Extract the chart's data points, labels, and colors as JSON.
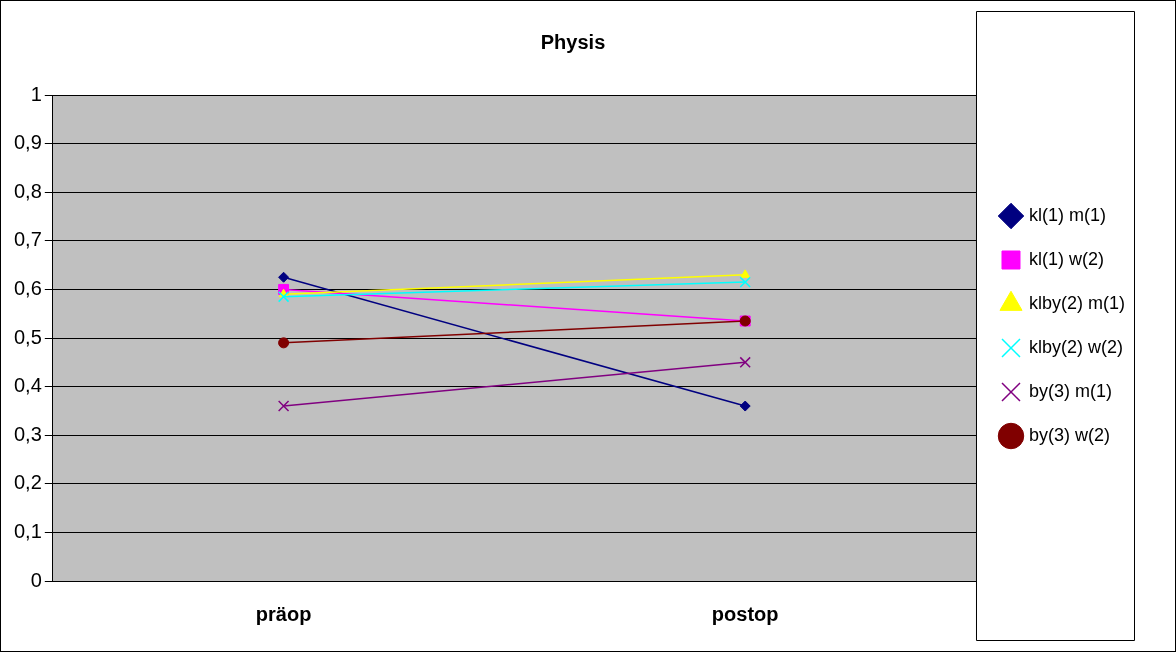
{
  "chart_data": {
    "type": "line",
    "title": "Physis",
    "categories": [
      "präop",
      "postop"
    ],
    "series": [
      {
        "name": "kl(1) m(1)",
        "color": "#000080",
        "values": [
          0.625,
          0.36
        ],
        "marker": "diamond"
      },
      {
        "name": "kl(1) w(2)",
        "color": "#ff00ff",
        "values": [
          0.6,
          0.535
        ],
        "marker": "square"
      },
      {
        "name": "klby(2) m(1)",
        "color": "#ffff00",
        "values": [
          0.59,
          0.63
        ],
        "marker": "triangle"
      },
      {
        "name": "klby(2) w(2)",
        "color": "#00ffff",
        "values": [
          0.585,
          0.615
        ],
        "marker": "cross"
      },
      {
        "name": "by(3) m(1)",
        "color": "#800080",
        "values": [
          0.36,
          0.45
        ],
        "marker": "cross"
      },
      {
        "name": "by(3) w(2)",
        "color": "#800000",
        "values": [
          0.49,
          0.535
        ],
        "marker": "circle"
      }
    ],
    "ylim": [
      0,
      1
    ],
    "yticks": [
      0,
      {
        "value": 0.1,
        "label": "0,1"
      },
      {
        "value": 0.2,
        "label": "0,2"
      },
      {
        "value": 0.3,
        "label": "0,3"
      },
      {
        "value": 0.4,
        "label": "0,4"
      },
      {
        "value": 0.5,
        "label": "0,5"
      },
      {
        "value": 0.6,
        "label": "0,6"
      },
      {
        "value": 0.7,
        "label": "0,7"
      },
      {
        "value": 0.8,
        "label": "0,8"
      },
      {
        "value": 0.9,
        "label": "0,9"
      },
      1
    ],
    "grid": "y",
    "legend": "right",
    "line_style": "solid"
  }
}
